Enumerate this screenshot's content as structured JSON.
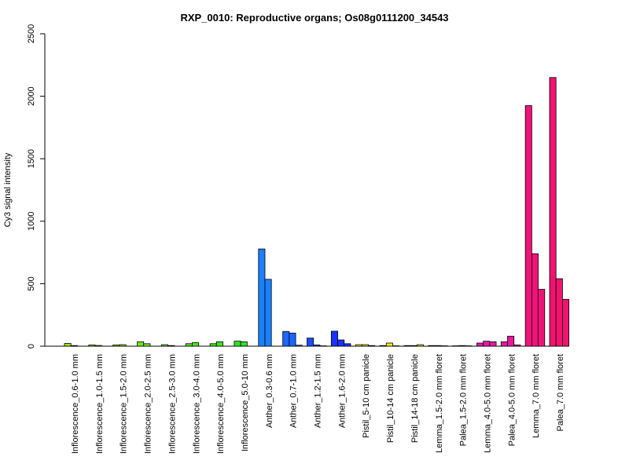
{
  "chart_data": {
    "type": "bar",
    "title": "RXP_0010: Reproductive organs; Os08g0111200_34543",
    "xlabel": "",
    "ylabel": "Cy3 signal intensity",
    "ylim": [
      0,
      2500
    ],
    "yticks": [
      0,
      500,
      1000,
      1500,
      2000,
      2500
    ],
    "grid": false,
    "legend": "none",
    "groups": [
      {
        "label": "Inflorescence_0.6-1.0 mm",
        "color": "#99e619",
        "values": [
          22,
          5
        ]
      },
      {
        "label": "Inflorescence_1.0-1.5 mm",
        "color": "#8ee619",
        "values": [
          10,
          6
        ]
      },
      {
        "label": "Inflorescence_1.5-2.0 mm",
        "color": "#80e619",
        "values": [
          10,
          12
        ]
      },
      {
        "label": "Inflorescence_2.0-2.5 mm",
        "color": "#70e619",
        "values": [
          35,
          20
        ]
      },
      {
        "label": "Inflorescence_2.5-3.0 mm",
        "color": "#5ee619",
        "values": [
          12,
          5
        ]
      },
      {
        "label": "Inflorescence_3.0-4.0 mm",
        "color": "#4ce619",
        "values": [
          20,
          28
        ]
      },
      {
        "label": "Inflorescence_4.0-5.0 mm",
        "color": "#3be619",
        "values": [
          20,
          35
        ]
      },
      {
        "label": "Inflorescence_5.0-10 mm",
        "color": "#2ae619",
        "values": [
          40,
          35
        ]
      },
      {
        "label": "Anther_0.3-0.6 mm",
        "color": "#1a80ff",
        "values": [
          778,
          535
        ]
      },
      {
        "label": "Anther_0.7-1.0 mm",
        "color": "#1a66ff",
        "values": [
          118,
          105,
          8
        ]
      },
      {
        "label": "Anther_1.2-1.5 mm",
        "color": "#1a4cff",
        "values": [
          65,
          10,
          3
        ]
      },
      {
        "label": "Anther_1.6-2.0 mm",
        "color": "#1a33ff",
        "values": [
          120,
          50,
          20
        ]
      },
      {
        "label": "Pistil_5-10 cm panicle",
        "color": "#e6e619",
        "values": [
          12,
          12,
          5
        ]
      },
      {
        "label": "Pistil_10-14 cm panicle",
        "color": "#f0e619",
        "values": [
          5,
          25,
          3
        ]
      },
      {
        "label": "Pistil_14-18 cm panicle",
        "color": "#e6d619",
        "values": [
          5,
          5,
          12
        ]
      },
      {
        "label": "Lemma_1.5-2.0 mm floret",
        "color": "#e6198c",
        "values": [
          5,
          5,
          3
        ]
      },
      {
        "label": "Palea_1.5-2.0 mm floret",
        "color": "#e61999",
        "values": [
          3,
          5,
          3
        ]
      },
      {
        "label": "Lemma_4.0-5.0 mm floret",
        "color": "#e619a6",
        "values": [
          25,
          40,
          35
        ]
      },
      {
        "label": "Palea_4.0-5.0 mm floret",
        "color": "#e6199f",
        "values": [
          35,
          80,
          10
        ]
      },
      {
        "label": "Lemma_7.0 mm floret",
        "color": "#f0137a",
        "values": [
          1925,
          740,
          455
        ]
      },
      {
        "label": "Palea_7.0 mm floret",
        "color": "#f01370",
        "values": [
          2150,
          540,
          375
        ]
      }
    ]
  }
}
